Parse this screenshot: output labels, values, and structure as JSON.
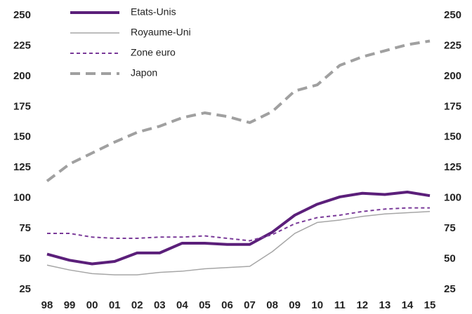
{
  "chart_data": {
    "type": "line",
    "categories": [
      "98",
      "99",
      "00",
      "01",
      "02",
      "03",
      "04",
      "05",
      "06",
      "07",
      "08",
      "09",
      "10",
      "11",
      "12",
      "13",
      "14",
      "15"
    ],
    "series": [
      {
        "name": "Etats-Unis",
        "color": "#5b1f7a",
        "style": "thick",
        "values": [
          54,
          49,
          46,
          48,
          55,
          55,
          63,
          63,
          62,
          62,
          72,
          86,
          95,
          101,
          104,
          103,
          105,
          102
        ]
      },
      {
        "name": "Royaume-Uni",
        "color": "#a6a6a6",
        "style": "thin",
        "values": [
          45,
          41,
          38,
          37,
          37,
          39,
          40,
          42,
          43,
          44,
          56,
          71,
          80,
          82,
          85,
          87,
          88,
          89
        ]
      },
      {
        "name": "Zone euro",
        "color": "#7a3a99",
        "style": "dotted",
        "values": [
          71,
          71,
          68,
          67,
          67,
          68,
          68,
          69,
          67,
          65,
          70,
          79,
          84,
          86,
          89,
          91,
          92,
          92
        ]
      },
      {
        "name": "Japon",
        "color": "#a0a0a0",
        "style": "dashed",
        "values": [
          114,
          128,
          137,
          146,
          154,
          159,
          166,
          170,
          167,
          162,
          171,
          188,
          193,
          209,
          216,
          221,
          226,
          229
        ]
      }
    ],
    "ylim": [
      25,
      250
    ],
    "yticks": [
      25,
      50,
      75,
      100,
      125,
      150,
      175,
      200,
      225,
      250
    ],
    "legend": "top-left"
  }
}
